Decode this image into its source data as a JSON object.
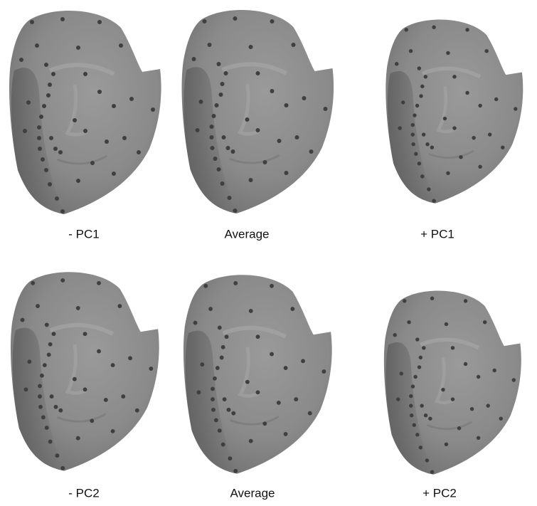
{
  "panels": [
    {
      "label": "- PC1"
    },
    {
      "label": "Average"
    },
    {
      "label": "+ PC1"
    },
    {
      "label": "- PC2"
    },
    {
      "label": "Average"
    },
    {
      "label": "+ PC2"
    }
  ]
}
